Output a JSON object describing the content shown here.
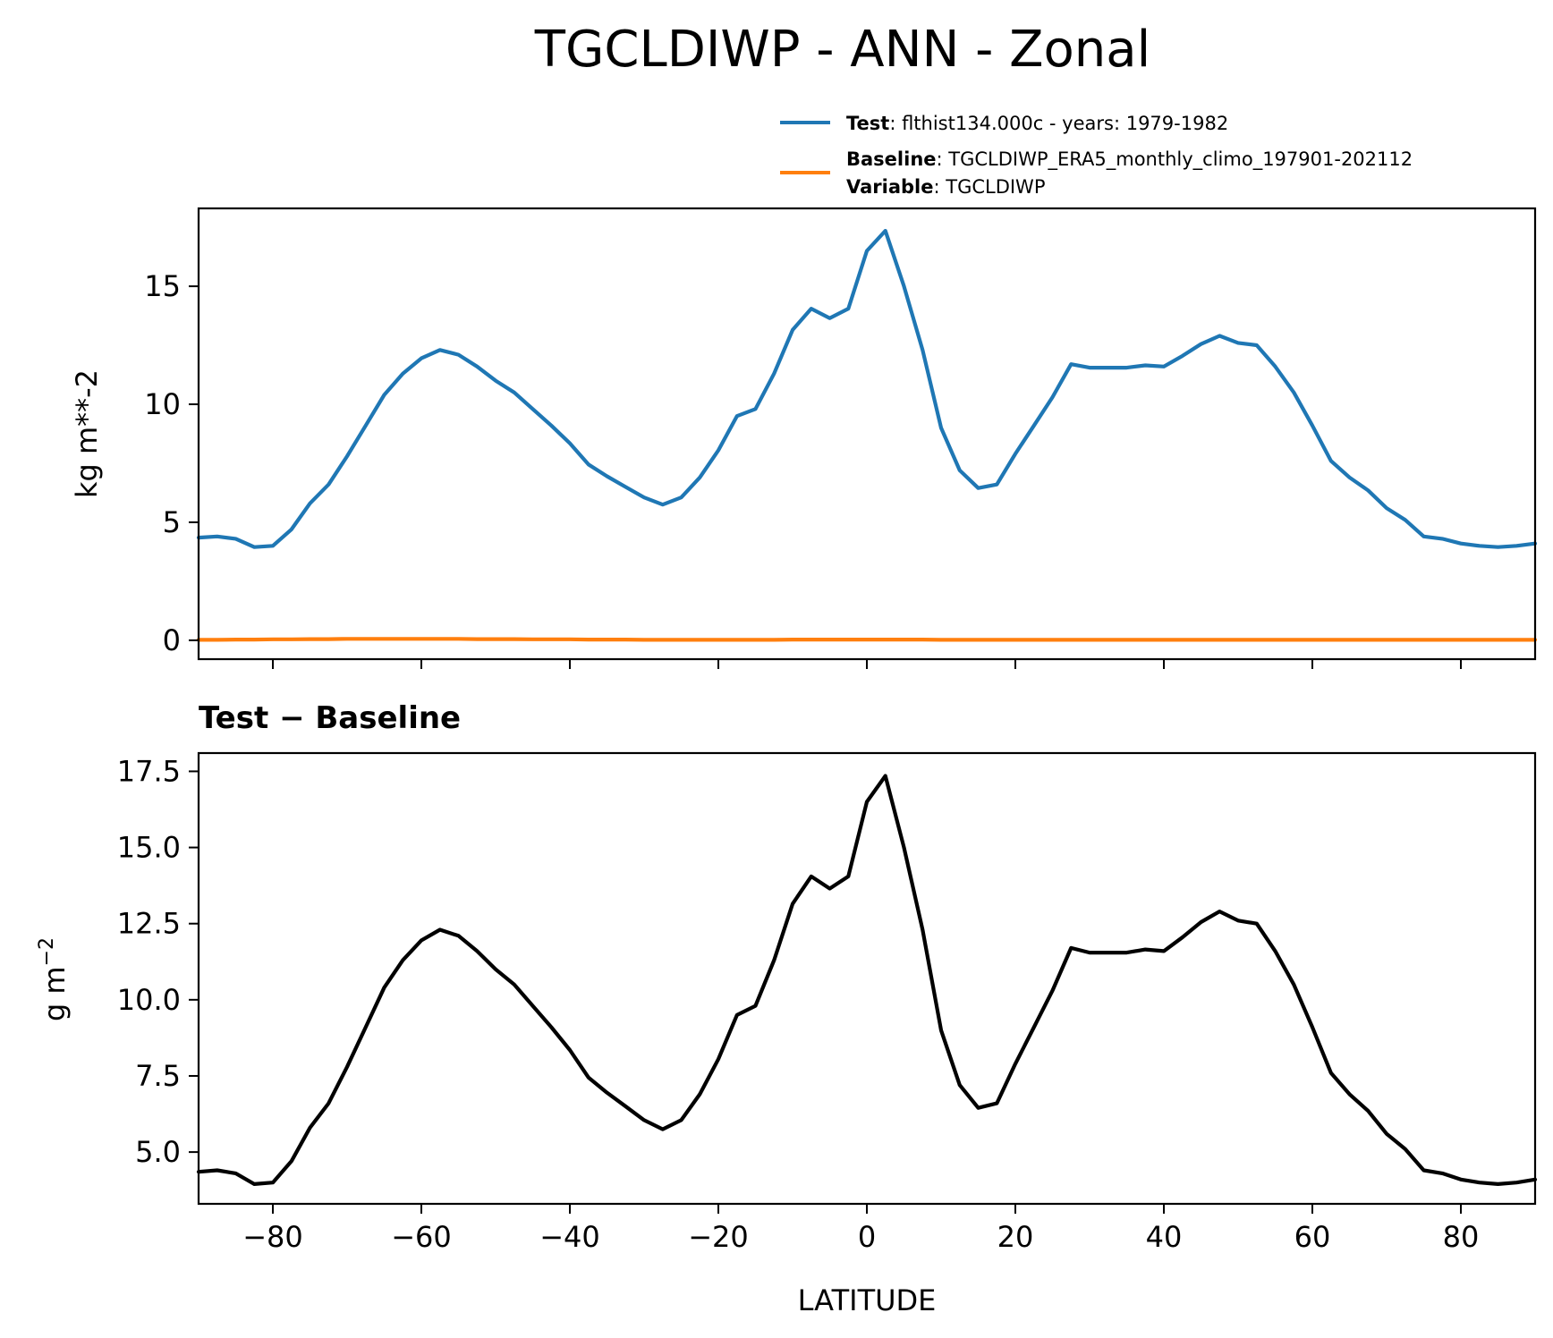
{
  "chart_data": {
    "type": "line",
    "title": "TGCLDIWP - ANN - Zonal",
    "xlabel": "LATITUDE",
    "xlim": [
      -90,
      90
    ],
    "xticks": [
      -80,
      -60,
      -40,
      -20,
      0,
      20,
      40,
      60,
      80
    ],
    "xtick_labels": [
      "−80",
      "−60",
      "−40",
      "−20",
      "0",
      "20",
      "40",
      "60",
      "80"
    ],
    "x": [
      -90,
      -87.5,
      -85,
      -82.5,
      -80,
      -77.5,
      -75,
      -72.5,
      -70,
      -67.5,
      -65,
      -62.5,
      -60,
      -57.5,
      -55,
      -52.5,
      -50,
      -47.5,
      -45,
      -42.5,
      -40,
      -37.5,
      -35,
      -32.5,
      -30,
      -27.5,
      -25,
      -22.5,
      -20,
      -17.5,
      -15,
      -12.5,
      -10,
      -7.5,
      -5,
      -2.5,
      0,
      2.5,
      5,
      7.5,
      10,
      12.5,
      15,
      17.5,
      20,
      22.5,
      25,
      27.5,
      30,
      32.5,
      35,
      37.5,
      40,
      42.5,
      45,
      47.5,
      50,
      52.5,
      55,
      57.5,
      60,
      62.5,
      65,
      67.5,
      70,
      72.5,
      75,
      77.5,
      80,
      82.5,
      85,
      87.5,
      90
    ],
    "legend": {
      "location": "top-right",
      "entries": [
        {
          "label_bold": "Test",
          "label_text": ": flthist134.000c - years: 1979-1982",
          "color": "#1f77b4"
        },
        {
          "label_bold": "Baseline",
          "label_text": ": TGCLDIWP_ERA5_monthly_climo_197901-202112",
          "color": "#ff7f0e"
        }
      ],
      "extra": {
        "label_bold": "Variable",
        "label_text": ": TGCLDIWP"
      }
    },
    "panels": [
      {
        "ylabel": "kg m**-2",
        "ylim": [
          -0.8,
          18.3
        ],
        "yticks": [
          0,
          5,
          10,
          15
        ],
        "ytick_labels": [
          "0",
          "5",
          "10",
          "15"
        ],
        "show_xtick_labels": false,
        "series": [
          {
            "name": "Test",
            "color": "#1f77b4",
            "values": [
              4.35,
              4.4,
              4.3,
              3.95,
              4.0,
              4.7,
              5.8,
              6.6,
              7.8,
              9.1,
              10.4,
              11.3,
              11.95,
              12.3,
              12.1,
              11.6,
              11.0,
              10.5,
              9.8,
              9.1,
              8.35,
              7.45,
              6.95,
              6.5,
              6.05,
              5.75,
              6.05,
              6.9,
              8.05,
              9.5,
              9.8,
              11.3,
              13.15,
              14.05,
              13.65,
              14.05,
              16.5,
              17.35,
              15.0,
              12.3,
              9.0,
              7.2,
              6.45,
              6.6,
              7.9,
              9.1,
              10.3,
              11.7,
              11.55,
              11.55,
              11.55,
              11.65,
              11.6,
              12.05,
              12.55,
              12.9,
              12.6,
              12.5,
              11.6,
              10.5,
              9.1,
              7.6,
              6.9,
              6.35,
              5.6,
              5.1,
              4.4,
              4.3,
              4.1,
              4.0,
              3.95,
              4.0,
              4.1
            ]
          },
          {
            "name": "Baseline",
            "color": "#ff7f0e",
            "values": [
              0.02,
              0.02,
              0.03,
              0.03,
              0.04,
              0.04,
              0.05,
              0.05,
              0.06,
              0.06,
              0.06,
              0.06,
              0.06,
              0.06,
              0.06,
              0.05,
              0.05,
              0.05,
              0.04,
              0.04,
              0.04,
              0.03,
              0.03,
              0.03,
              0.02,
              0.02,
              0.02,
              0.02,
              0.02,
              0.02,
              0.02,
              0.02,
              0.03,
              0.03,
              0.03,
              0.03,
              0.03,
              0.03,
              0.03,
              0.03,
              0.02,
              0.02,
              0.02,
              0.02,
              0.02,
              0.02,
              0.02,
              0.02,
              0.02,
              0.02,
              0.02,
              0.02,
              0.02,
              0.02,
              0.02,
              0.02,
              0.02,
              0.02,
              0.02,
              0.02,
              0.02,
              0.02,
              0.02,
              0.02,
              0.02,
              0.02,
              0.02,
              0.02,
              0.02,
              0.02,
              0.02,
              0.02,
              0.02
            ]
          }
        ]
      },
      {
        "title": "Test − Baseline",
        "ylabel_base": "g m",
        "ylabel_sup": "−2",
        "ylim": [
          3.3,
          18.1
        ],
        "yticks": [
          5.0,
          7.5,
          10.0,
          12.5,
          15.0,
          17.5
        ],
        "ytick_labels": [
          "5.0",
          "7.5",
          "10.0",
          "12.5",
          "15.0",
          "17.5"
        ],
        "show_xtick_labels": true,
        "series": [
          {
            "name": "Test - Baseline",
            "color": "#000000",
            "values": [
              4.35,
              4.4,
              4.3,
              3.95,
              4.0,
              4.7,
              5.8,
              6.6,
              7.8,
              9.1,
              10.4,
              11.3,
              11.95,
              12.3,
              12.1,
              11.6,
              11.0,
              10.5,
              9.8,
              9.1,
              8.35,
              7.45,
              6.95,
              6.5,
              6.05,
              5.75,
              6.05,
              6.9,
              8.05,
              9.5,
              9.8,
              11.3,
              13.15,
              14.05,
              13.65,
              14.05,
              16.5,
              17.35,
              15.0,
              12.3,
              9.0,
              7.2,
              6.45,
              6.6,
              7.9,
              9.1,
              10.3,
              11.7,
              11.55,
              11.55,
              11.55,
              11.65,
              11.6,
              12.05,
              12.55,
              12.9,
              12.6,
              12.5,
              11.6,
              10.5,
              9.1,
              7.6,
              6.9,
              6.35,
              5.6,
              5.1,
              4.4,
              4.3,
              4.1,
              4.0,
              3.95,
              4.0,
              4.1
            ]
          }
        ]
      }
    ]
  }
}
